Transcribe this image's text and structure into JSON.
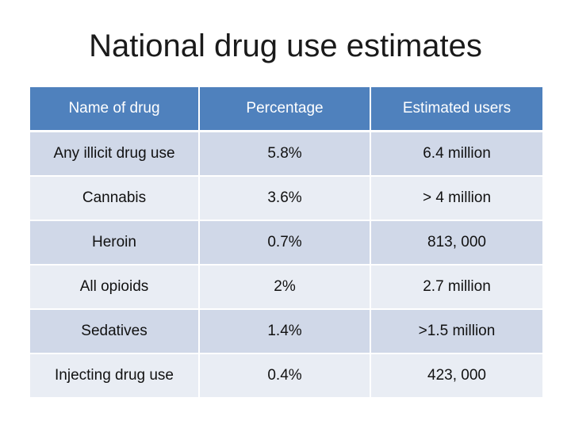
{
  "title": "National drug use estimates",
  "table": {
    "headers": [
      "Name of drug",
      "Percentage",
      "Estimated users"
    ],
    "rows": [
      [
        "Any illicit drug use",
        "5.8%",
        "6.4 million"
      ],
      [
        "Cannabis",
        "3.6%",
        "> 4 million"
      ],
      [
        "Heroin",
        "0.7%",
        "813, 000"
      ],
      [
        "All opioids",
        "2%",
        "2.7 million"
      ],
      [
        "Sedatives",
        "1.4%",
        ">1.5 million"
      ],
      [
        "Injecting drug use",
        "0.4%",
        "423, 000"
      ]
    ]
  },
  "colors": {
    "header_bg": "#4f81bd",
    "row_band_dark": "#d0d8e8",
    "row_band_light": "#e9edf4"
  }
}
